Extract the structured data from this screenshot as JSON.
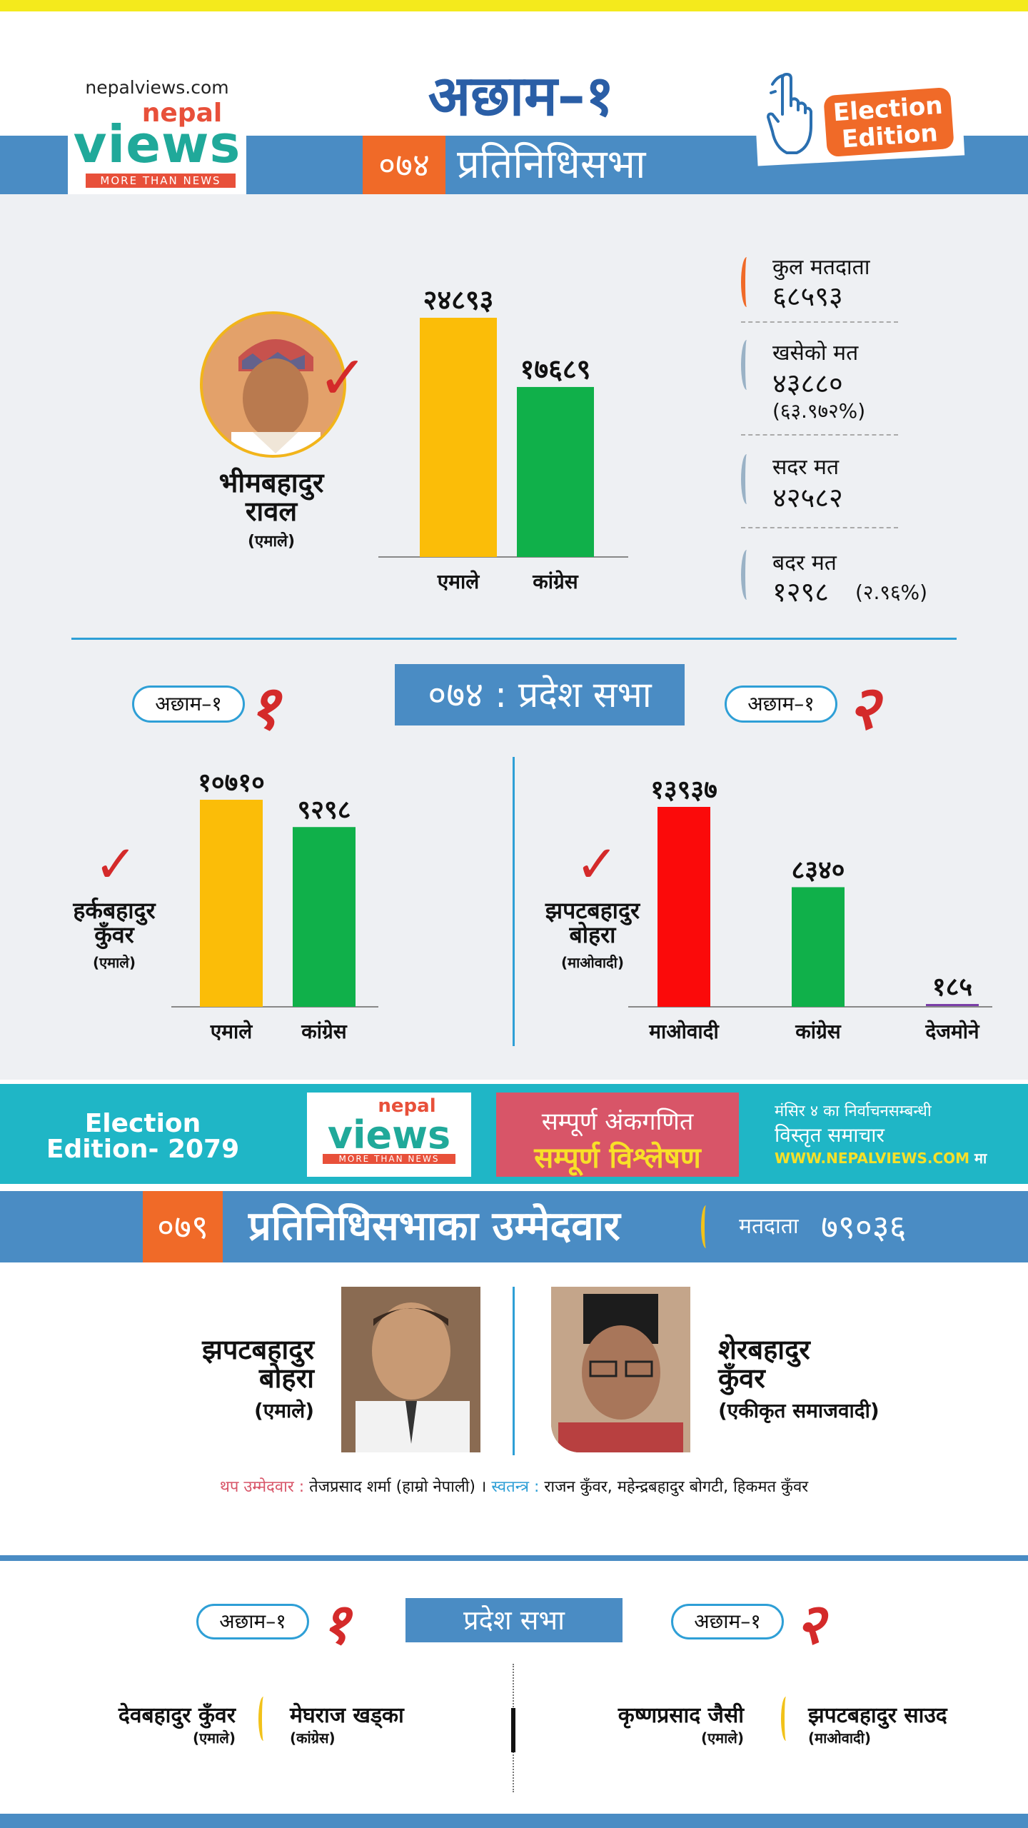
{
  "header": {
    "site_url": "nepalviews.com",
    "logo": {
      "top": "nepal",
      "main": "views",
      "tagline": "MORE THAN NEWS"
    },
    "district": "अछाम–१",
    "year": "०७४",
    "title": "प्रतिनिधिसभा",
    "edition_badge": {
      "line1": "Election",
      "line2": "Edition"
    }
  },
  "federal_2074": {
    "winner": {
      "name_line1": "भीमबहादुर",
      "name_line2": "रावल",
      "party": "(एमाले)"
    },
    "chart_data": {
      "type": "bar",
      "categories": [
        "एमाले",
        "कांग्रेस"
      ],
      "values": [
        24893,
        17689
      ],
      "value_labels": [
        "२४८९३",
        "१७६८९"
      ],
      "colors": [
        "#fbbd08",
        "#10b04a"
      ]
    },
    "stats": [
      {
        "label": "कुल मतदाता",
        "value": "६८५९३",
        "sub": ""
      },
      {
        "label": "खसेको मत",
        "value": "४३८८०",
        "sub": "(६३.९७२%)"
      },
      {
        "label": "सदर मत",
        "value": "४२५८२",
        "sub": ""
      },
      {
        "label": "बदर मत",
        "value": "१२९८",
        "sub": "(२.९६%)"
      }
    ]
  },
  "province_2074": {
    "title": "०७४ : प्रदेश सभा",
    "constituency_1": {
      "pill": "अछाम–१",
      "number": "१",
      "winner": {
        "name_line1": "हर्कबहादुर",
        "name_line2": "कुँवर",
        "party": "(एमाले)"
      },
      "chart_data": {
        "type": "bar",
        "categories": [
          "एमाले",
          "कांग्रेस"
        ],
        "values": [
          10710,
          9298
        ],
        "value_labels": [
          "१०७१०",
          "९२९८"
        ],
        "colors": [
          "#fbbd08",
          "#10b04a"
        ]
      }
    },
    "constituency_2": {
      "pill": "अछाम–१",
      "number": "२",
      "winner": {
        "name_line1": "झपटबहादुर",
        "name_line2": "बोहरा",
        "party": "(माओवादी)"
      },
      "chart_data": {
        "type": "bar",
        "categories": [
          "माओवादी",
          "कांग्रेस",
          "देजमोने"
        ],
        "values": [
          13937,
          8340,
          185
        ],
        "value_labels": [
          "१३९३७",
          "८३४०",
          "१८५"
        ],
        "colors": [
          "#fb0a0a",
          "#10b04a",
          "#7b3fa8"
        ]
      }
    }
  },
  "banner": {
    "left_line1": "Election",
    "left_line2": "Edition- 2079",
    "mid_line1": "सम्पूर्ण अंकगणित",
    "mid_line2": "सम्पूर्ण विश्लेषण",
    "right_line1": "मंसिर ४ का निर्वाचनसम्बन्धी",
    "right_line2": "विस्तृत समाचार",
    "right_url": "WWW.NEPALVIEWS.COM",
    "right_suffix": "मा"
  },
  "candidates_2079": {
    "year": "०७९",
    "title": "प्रतिनिधिसभाका उम्मेदवार",
    "voters_label": "मतदाता",
    "voters_value": "७९०३६",
    "left": {
      "name_line1": "झपटबहादुर",
      "name_line2": "बोहरा",
      "party": "(एमाले)"
    },
    "right": {
      "name_line1": "शेरबहादुर",
      "name_line2": "कुँवर",
      "party": "(एकीकृत समाजवादी)"
    },
    "extra_label": "थप उम्मेदवार :",
    "extra_text": "तेजप्रसाद शर्मा (हाम्रो नेपाली) ।",
    "independent_label": "स्वतन्त्र :",
    "independent_text": "राजन कुँवर, महेन्द्रबहादुर बोगटी, हिकमत कुँवर"
  },
  "province_2079": {
    "title": "प्रदेश सभा",
    "c1": {
      "pill": "अछाम–१",
      "number": "१",
      "cand_a": {
        "name": "देवबहादुर कुँवर",
        "party": "(एमाले)"
      },
      "cand_b": {
        "name": "मेघराज खड्का",
        "party": "(कांग्रेस)"
      }
    },
    "c2": {
      "pill": "अछाम–१",
      "number": "२",
      "cand_a": {
        "name": "कृष्णप्रसाद जैसी",
        "party": "(एमाले)"
      },
      "cand_b": {
        "name": "झपटबहादुर साउद",
        "party": "(माओवादी)"
      }
    }
  }
}
